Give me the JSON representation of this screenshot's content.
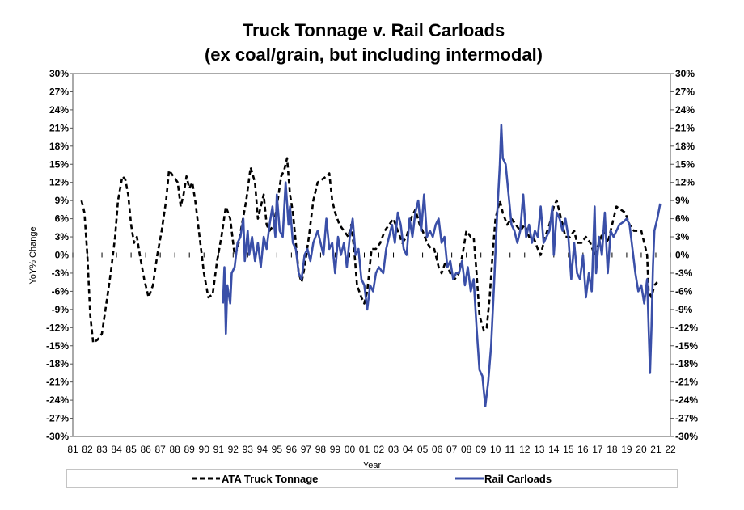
{
  "chart_data": {
    "type": "line",
    "title": [
      "Truck Tonnage v. Rail Carloads",
      "(ex coal/grain, but including intermodal)"
    ],
    "xlabel": "Year",
    "ylabel": "YoY% Change",
    "xlim": [
      1981,
      2022
    ],
    "ylim": [
      -30,
      30
    ],
    "y_ticks": [
      "30%",
      "27%",
      "24%",
      "21%",
      "18%",
      "15%",
      "12%",
      "9%",
      "6%",
      "3%",
      "0%",
      "-3%",
      "-6%",
      "-9%",
      "-12%",
      "-15%",
      "-18%",
      "-21%",
      "-24%",
      "-27%",
      "-30%"
    ],
    "x_ticks": [
      "81",
      "82",
      "83",
      "84",
      "85",
      "86",
      "87",
      "88",
      "89",
      "90",
      "91",
      "92",
      "93",
      "94",
      "95",
      "96",
      "97",
      "98",
      "99",
      "00",
      "01",
      "02",
      "03",
      "04",
      "05",
      "06",
      "07",
      "08",
      "09",
      "10",
      "11",
      "12",
      "13",
      "14",
      "15",
      "16",
      "17",
      "18",
      "19",
      "20",
      "21",
      "22"
    ],
    "grid": false,
    "legend_position": "bottom",
    "series": [
      {
        "name": "ATA Truck Tonnage",
        "color": "#000000",
        "style": "dashed",
        "x": [
          1981.6,
          1981.8,
          1982.0,
          1982.2,
          1982.4,
          1982.7,
          1983.0,
          1983.3,
          1983.6,
          1983.9,
          1984.1,
          1984.4,
          1984.6,
          1984.8,
          1985.0,
          1985.2,
          1985.4,
          1985.6,
          1985.9,
          1986.2,
          1986.5,
          1986.8,
          1987.1,
          1987.4,
          1987.6,
          1987.9,
          1988.2,
          1988.4,
          1988.6,
          1988.8,
          1989.0,
          1989.2,
          1989.4,
          1989.7,
          1990.0,
          1990.3,
          1990.6,
          1990.9,
          1991.2,
          1991.5,
          1991.8,
          1992.1,
          1992.3,
          1992.6,
          1992.9,
          1993.2,
          1993.5,
          1993.7,
          1993.9,
          1994.1,
          1994.3,
          1994.5,
          1994.8,
          1995.0,
          1995.3,
          1995.5,
          1995.7,
          1995.9,
          1996.1,
          1996.3,
          1996.5,
          1996.7,
          1996.9,
          1997.2,
          1997.5,
          1997.8,
          1998.1,
          1998.4,
          1998.6,
          1998.8,
          1999.0,
          1999.3,
          1999.6,
          1999.9,
          2000.1,
          2000.3,
          2000.5,
          2000.8,
          2001.0,
          2001.2,
          2001.5,
          2001.8,
          2002.1,
          2002.4,
          2002.7,
          2003.0,
          2003.3,
          2003.6,
          2003.9,
          2004.2,
          2004.5,
          2004.8,
          2005.0,
          2005.3,
          2005.6,
          2005.8,
          2006.1,
          2006.3,
          2006.6,
          2006.9,
          2007.2,
          2007.5,
          2007.8,
          2008.0,
          2008.3,
          2008.5,
          2008.7,
          2008.9,
          2009.2,
          2009.4,
          2009.6,
          2009.8,
          2010.0,
          2010.3,
          2010.5,
          2010.8,
          2011.1,
          2011.4,
          2011.7,
          2012.0,
          2012.3,
          2012.6,
          2012.9,
          2013.1,
          2013.4,
          2013.7,
          2014.0,
          2014.2,
          2014.5,
          2014.8,
          2015.1,
          2015.4,
          2015.6,
          2015.9,
          2016.2,
          2016.5,
          2016.8,
          2017.1,
          2017.4,
          2017.7,
          2018.0,
          2018.3,
          2018.6,
          2018.9,
          2019.2,
          2019.5,
          2019.8,
          2020.0,
          2020.2,
          2020.4,
          2020.5,
          2020.7,
          2020.9,
          2021.1
        ],
        "values": [
          9,
          7,
          0,
          -10,
          -14.5,
          -14,
          -13,
          -8,
          -3,
          3,
          9,
          13,
          12.5,
          10,
          5,
          2,
          3,
          0,
          -4,
          -7,
          -5,
          0,
          4,
          9,
          14,
          13,
          12,
          8,
          10,
          13,
          11,
          12,
          9,
          3,
          -3,
          -7,
          -6.5,
          -1,
          3,
          8,
          6,
          0,
          1,
          5,
          9,
          14.5,
          12,
          6,
          8,
          10,
          5,
          4,
          5,
          8,
          13,
          14,
          16,
          10,
          7,
          2,
          -3,
          -4.5,
          -2,
          3,
          9,
          12,
          12.5,
          13,
          13.5,
          9,
          7,
          5,
          4,
          3,
          5,
          1,
          -5,
          -7,
          -8,
          -6,
          1,
          1,
          2,
          4,
          5,
          6,
          4,
          2,
          3,
          6,
          7.5,
          5,
          4,
          2,
          1,
          1,
          -2,
          -3,
          -1,
          -3,
          -4,
          -3,
          1,
          4,
          3,
          3,
          -3,
          -10,
          -12.5,
          -12,
          -7,
          0,
          6,
          9,
          7,
          5,
          6,
          5,
          4,
          5,
          3,
          3,
          1,
          0,
          3,
          5,
          8,
          9,
          6,
          3,
          3,
          4,
          2,
          2,
          3,
          2,
          0,
          2,
          4,
          2,
          5,
          8,
          7.5,
          7,
          5,
          4,
          4,
          4,
          2,
          0,
          -6,
          -7,
          -5,
          -4.5
        ]
      },
      {
        "name": "Rail Carloads",
        "color": "#3a4fa8",
        "style": "solid",
        "x": [
          1991.3,
          1991.4,
          1991.5,
          1991.6,
          1991.8,
          1991.9,
          1992.1,
          1992.3,
          1992.5,
          1992.7,
          1992.8,
          1993.0,
          1993.1,
          1993.3,
          1993.5,
          1993.7,
          1993.9,
          1994.1,
          1994.3,
          1994.5,
          1994.7,
          1994.9,
          1995.0,
          1995.2,
          1995.4,
          1995.6,
          1995.8,
          1995.9,
          1996.1,
          1996.3,
          1996.5,
          1996.7,
          1996.9,
          1997.1,
          1997.3,
          1997.5,
          1997.8,
          1998.0,
          1998.2,
          1998.4,
          1998.6,
          1998.8,
          1999.0,
          1999.2,
          1999.4,
          1999.6,
          1999.8,
          2000.0,
          2000.2,
          2000.4,
          2000.6,
          2000.8,
          2001.0,
          2001.2,
          2001.4,
          2001.6,
          2001.8,
          2002.0,
          2002.3,
          2002.5,
          2002.7,
          2002.9,
          2003.1,
          2003.3,
          2003.5,
          2003.7,
          2003.9,
          2004.1,
          2004.3,
          2004.5,
          2004.7,
          2004.9,
          2005.1,
          2005.3,
          2005.5,
          2005.7,
          2005.9,
          2006.1,
          2006.3,
          2006.5,
          2006.7,
          2006.9,
          2007.1,
          2007.3,
          2007.5,
          2007.7,
          2007.9,
          2008.1,
          2008.3,
          2008.5,
          2008.7,
          2008.9,
          2009.1,
          2009.3,
          2009.5,
          2009.7,
          2009.9,
          2010.1,
          2010.3,
          2010.4,
          2010.5,
          2010.7,
          2010.9,
          2011.1,
          2011.3,
          2011.5,
          2011.7,
          2011.9,
          2012.1,
          2012.3,
          2012.5,
          2012.7,
          2012.9,
          2013.1,
          2013.3,
          2013.5,
          2013.7,
          2013.9,
          2014.0,
          2014.2,
          2014.4,
          2014.6,
          2014.8,
          2015.0,
          2015.2,
          2015.4,
          2015.6,
          2015.8,
          2016.0,
          2016.2,
          2016.4,
          2016.6,
          2016.8,
          2016.9,
          2017.1,
          2017.3,
          2017.5,
          2017.7,
          2017.9,
          2018.1,
          2018.3,
          2018.5,
          2018.8,
          2019.0,
          2019.2,
          2019.4,
          2019.6,
          2019.8,
          2020.0,
          2020.2,
          2020.4,
          2020.6,
          2020.7,
          2020.8,
          2020.9,
          2021.1,
          2021.3
        ],
        "values": [
          -8,
          -2,
          -13,
          -5,
          -8,
          -3,
          -2,
          2,
          3,
          6,
          -1,
          4,
          0,
          3,
          -1,
          2,
          -2,
          3,
          1,
          5,
          8,
          3,
          10,
          4,
          3,
          12,
          5,
          8,
          2,
          1,
          -3,
          -4,
          0,
          1,
          -1,
          2,
          4,
          2,
          0,
          6,
          1,
          2,
          -3,
          3,
          0,
          2,
          -2,
          3,
          6,
          0,
          1,
          -4,
          -5,
          -9,
          -5,
          -6,
          -3,
          -2,
          -3,
          1,
          3,
          5,
          2,
          7,
          5,
          1,
          0,
          6,
          3,
          7,
          9,
          4,
          10,
          3,
          4,
          3,
          5,
          6,
          2,
          3,
          -2,
          -1,
          -4,
          -3,
          -3,
          -1,
          -5,
          -2,
          -6,
          -4,
          -12,
          -19,
          -20,
          -25,
          -21,
          -15,
          -5,
          6,
          15,
          21.5,
          16,
          15,
          10,
          5,
          4,
          2,
          4,
          10,
          3,
          5,
          2,
          4,
          3,
          8,
          2,
          3,
          4,
          8,
          0,
          7,
          6,
          4,
          6,
          3,
          -4,
          2,
          -3,
          -4,
          0,
          -7,
          -3,
          -6,
          8,
          -3,
          3,
          0,
          7,
          -3,
          4,
          3,
          4,
          5,
          5.5,
          6,
          5,
          1,
          -3,
          -6,
          -5,
          -8,
          -4,
          -19.5,
          -12,
          -2,
          4,
          6,
          8.5
        ]
      }
    ]
  }
}
